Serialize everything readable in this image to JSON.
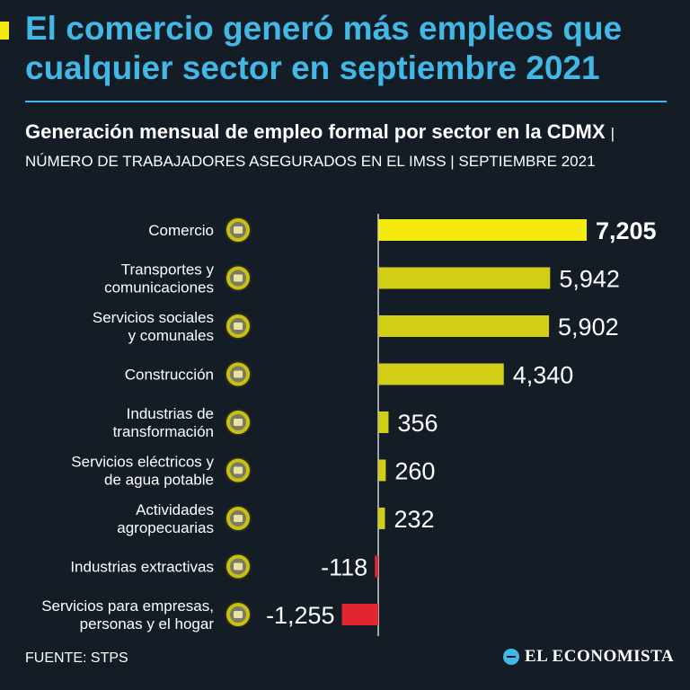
{
  "headline": "El comercio generó más empleos que cualquier sector en septiembre 2021",
  "subtitle": {
    "bold_part": "Generación mensual de empleo formal por sector en la CDMX",
    "light_part": "| NÚMERO DE TRABAJADORES ASEGURADOS EN EL IMSS | SEPTIEMBRE 2021"
  },
  "footer": {
    "source": "FUENTE: STPS",
    "brand": "EL ECONOMISTA"
  },
  "colors": {
    "background": "#141c26",
    "headline": "#41b8e6",
    "highlight_bar": "#f5ea0e",
    "positive_bar": "#d2cd15",
    "negative_bar": "#e2262f",
    "icon_fill": "#c9c10f"
  },
  "chart_data": {
    "type": "bar",
    "orientation": "horizontal",
    "title": "Generación mensual de empleo formal por sector en la CDMX",
    "xlabel": "",
    "ylabel": "",
    "xlim": [
      -1255,
      7205
    ],
    "grid": false,
    "categories": [
      "Comercio",
      "Transportes y comunicaciones",
      "Servicios sociales y comunales",
      "Construcción",
      "Industrias de transformación",
      "Servicios eléctricos y de agua potable",
      "Actividades agropecuarias",
      "Industrias extractivas",
      "Servicios para empresas, personas y el hogar"
    ],
    "label_lines": [
      [
        "Comercio"
      ],
      [
        "Transportes y",
        "comunicaciones"
      ],
      [
        "Servicios sociales",
        "y comunales"
      ],
      [
        "Construcción"
      ],
      [
        "Industrias de",
        "transformación"
      ],
      [
        "Servicios eléctricos y",
        "de agua potable"
      ],
      [
        "Actividades",
        "agropecuarias"
      ],
      [
        "Industrias extractivas"
      ],
      [
        "Servicios para empresas,",
        "personas y el hogar"
      ]
    ],
    "values": [
      7205,
      5942,
      5902,
      4340,
      356,
      260,
      232,
      -118,
      -1255
    ],
    "value_labels": [
      "7,205",
      "5,942",
      "5,902",
      "4,340",
      "356",
      "260",
      "232",
      "-118",
      "-1,255"
    ],
    "icons": [
      "shopping-bags-icon",
      "bus-icon",
      "hands-heart-icon",
      "construction-worker-icon",
      "gears-icon",
      "electric-tower-icon",
      "crops-icon",
      "oil-pump-icon",
      "service-person-icon"
    ],
    "highlight_index": 0
  }
}
